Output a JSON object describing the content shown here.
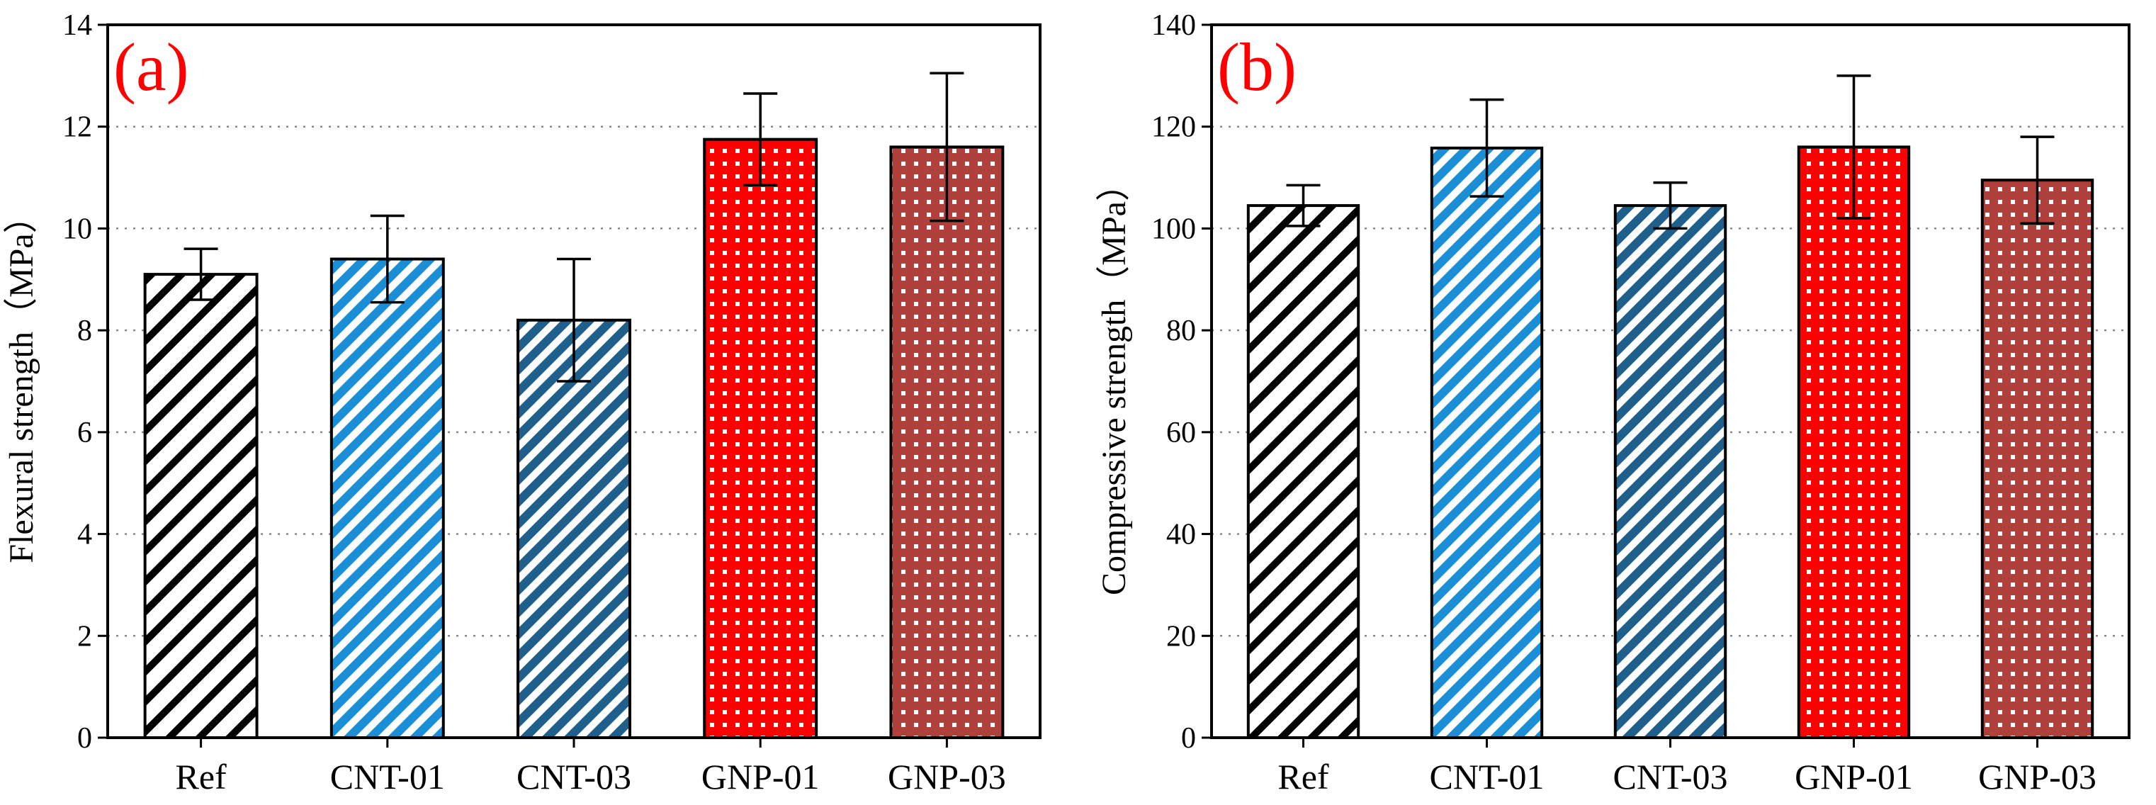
{
  "colors": {
    "ref": "#000000",
    "cnt01": "#1a8fd8",
    "cnt03": "#1f5f8b",
    "gnp01": "#ff0000",
    "gnp03": "#b0403c",
    "panel_label": "#ff0000",
    "grid": "#888888"
  },
  "chart_data": [
    {
      "type": "bar",
      "panel_label": "(a)",
      "categories": [
        "Ref",
        "CNT-01",
        "CNT-03",
        "GNP-01",
        "GNP-03"
      ],
      "values": [
        9.1,
        9.4,
        8.2,
        11.75,
        11.6
      ],
      "errors": [
        0.5,
        0.85,
        1.2,
        0.9,
        1.45
      ],
      "patterns": [
        "stripe-ref",
        "stripe-cnt01",
        "stripe-cnt03",
        "check-gnp01",
        "check-gnp03"
      ],
      "ylabel": "Flexural strength（MPa）",
      "xlabel": "",
      "ylim": [
        0,
        14
      ],
      "yticks": [
        0,
        2,
        4,
        6,
        8,
        10,
        12,
        14
      ],
      "grid": true
    },
    {
      "type": "bar",
      "panel_label": "(b)",
      "categories": [
        "Ref",
        "CNT-01",
        "CNT-03",
        "GNP-01",
        "GNP-03"
      ],
      "values": [
        104.5,
        115.8,
        104.5,
        116.0,
        109.5
      ],
      "errors": [
        4.0,
        9.5,
        4.5,
        14.0,
        8.5
      ],
      "patterns": [
        "stripe-ref",
        "stripe-cnt01",
        "stripe-cnt03",
        "check-gnp01",
        "check-gnp03"
      ],
      "ylabel": "Compressive strength（MPa）",
      "xlabel": "",
      "ylim": [
        0,
        140
      ],
      "yticks": [
        0,
        20,
        40,
        60,
        80,
        100,
        120,
        140
      ],
      "grid": true
    }
  ]
}
